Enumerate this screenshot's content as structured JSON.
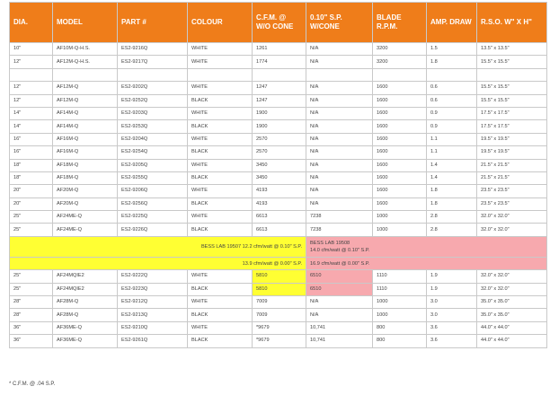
{
  "headers": [
    "DIA.",
    "MODEL",
    "PART #",
    "COLOUR",
    "C.F.M. @ W/O CONE",
    "0.10\" S.P. W/CONE",
    "BLADE R.P.M.",
    "AMP. DRAW",
    "R.S.O. W\" X H\""
  ],
  "rows_a": [
    [
      "10\"",
      "AF10M-Q-H.S.",
      "ES2-9216Q",
      "WHITE",
      "1261",
      "N/A",
      "3200",
      "1.5",
      "13.5\" x 13.5\""
    ],
    [
      "12\"",
      "AF12M-Q-H.S.",
      "ES2-9217Q",
      "WHITE",
      "1774",
      "N/A",
      "3200",
      "1.8",
      "15.5\" x 15.5\""
    ]
  ],
  "rows_b": [
    [
      "12\"",
      "AF12M-Q",
      "ES2-9202Q",
      "WHITE",
      "1247",
      "N/A",
      "1600",
      "0.6",
      "15.5\" x 15.5\""
    ],
    [
      "12\"",
      "AF12M-Q",
      "ES2-9252Q",
      "BLACK",
      "1247",
      "N/A",
      "1600",
      "0.6",
      "15.5\" x 15.5\""
    ],
    [
      "14\"",
      "AF14M-Q",
      "ES2-9203Q",
      "WHITE",
      "1900",
      "N/A",
      "1600",
      "0.9",
      "17.5\" x 17.5\""
    ],
    [
      "14\"",
      "AF14M-Q",
      "ES2-9253Q",
      "BLACK",
      "1900",
      "N/A",
      "1600",
      "0.9",
      "17.5\" x 17.5\""
    ],
    [
      "16\"",
      "AF16M-Q",
      "ES2-9204Q",
      "WHITE",
      "2570",
      "N/A",
      "1600",
      "1.1",
      "19.5\" x 19.5\""
    ],
    [
      "16\"",
      "AF16M-Q",
      "ES2-9254Q",
      "BLACK",
      "2570",
      "N/A",
      "1600",
      "1.1",
      "19.5\" x 19.5\""
    ],
    [
      "18\"",
      "AF18M-Q",
      "ES2-9205Q",
      "WHITE",
      "3450",
      "N/A",
      "1600",
      "1.4",
      "21.5\" x 21.5\""
    ],
    [
      "18\"",
      "AF18M-Q",
      "ES2-9255Q",
      "BLACK",
      "3450",
      "N/A",
      "1600",
      "1.4",
      "21.5\" x 21.5\""
    ],
    [
      "20\"",
      "AF20M-Q",
      "ES2-9206Q",
      "WHITE",
      "4193",
      "N/A",
      "1600",
      "1.8",
      "23.5\" x 23.5\""
    ],
    [
      "20\"",
      "AF20M-Q",
      "ES2-9256Q",
      "BLACK",
      "4193",
      "N/A",
      "1600",
      "1.8",
      "23.5\" x 23.5\""
    ],
    [
      "25\"",
      "AF24ME-Q",
      "ES2-9225Q",
      "WHITE",
      "6613",
      "7238",
      "1000",
      "2.8",
      "32.0\" x 32.0\""
    ],
    [
      "25\"",
      "AF24ME-Q",
      "ES2-9226Q",
      "BLACK",
      "6613",
      "7238",
      "1000",
      "2.8",
      "32.0\" x 32.0\""
    ]
  ],
  "bess": {
    "yellow_top": "BESS LAB 19507 12.2 cfm/watt @ 0.10\" S.P.",
    "pink_top_1": "BESS LAB 19508",
    "pink_top_2": "14.0 cfm/watt @ 0.10\" S.P.",
    "yellow_bottom": "13.9 cfm/watt @ 0.00\" S.P.",
    "pink_bottom": "16.9 cfm/watt @ 0.00\" S.P."
  },
  "rows_c": [
    [
      "25\"",
      "AF24MQIE2",
      "ES2-9222Q",
      "WHITE",
      "5810",
      "6510",
      "1110",
      "1.9",
      "32.0\" x 32.0\""
    ],
    [
      "25\"",
      "AF24MQIE2",
      "ES2-9223Q",
      "BLACK",
      "5810",
      "6510",
      "1110",
      "1.9",
      "32.0\" x 32.0\""
    ],
    [
      "28\"",
      "AF28M-Q",
      "ES2-9212Q",
      "WHITE",
      "7009",
      "N/A",
      "1000",
      "3.0",
      "35.0\" x 35.0\""
    ],
    [
      "28\"",
      "AF28M-Q",
      "ES2-9213Q",
      "BLACK",
      "7009",
      "N/A",
      "1000",
      "3.0",
      "35.0\" x 35.0\""
    ],
    [
      "36\"",
      "AF36ME-Q",
      "ES2-9210Q",
      "WHITE",
      "*9679",
      "10,741",
      "800",
      "3.6",
      "44.0\" x 44.0\""
    ],
    [
      "36\"",
      "AF36ME-Q",
      "ES2-9261Q",
      "BLACK",
      "*9679",
      "10,741",
      "800",
      "3.6",
      "44.0\" x 44.0\""
    ]
  ],
  "footnote": "* C.F.M. @ .04 S.P.",
  "colors": {
    "header_bg": "#ef7d1a",
    "yellow": "#ffff33",
    "pink": "#f7a9ae"
  }
}
